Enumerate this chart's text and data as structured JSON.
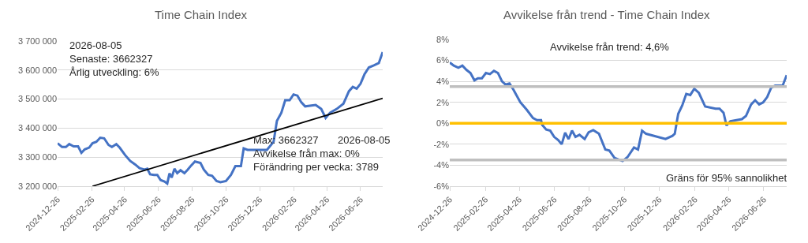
{
  "chart_data": [
    {
      "type": "line",
      "title": "Time Chain Index",
      "series": [
        {
          "color": "#4472c4",
          "x": [
            "2024-12-26",
            "2025-01-03",
            "2025-01-10",
            "2025-01-16",
            "2025-01-24",
            "2025-02-01",
            "2025-02-07",
            "2025-02-13",
            "2025-02-21",
            "2025-02-27",
            "2025-03-06",
            "2025-03-13",
            "2025-03-20",
            "2025-03-28",
            "2025-04-03",
            "2025-04-11",
            "2025-04-17",
            "2025-04-27",
            "2025-05-06",
            "2025-05-15",
            "2025-05-23",
            "2025-06-01",
            "2025-06-06",
            "2025-06-11",
            "2025-06-18",
            "2025-06-24",
            "2025-06-30",
            "2025-07-07",
            "2025-07-12",
            "2025-07-16",
            "2025-07-20",
            "2025-07-25",
            "2025-07-30",
            "2025-08-05",
            "2025-08-12",
            "2025-08-18",
            "2025-08-24",
            "2025-08-31",
            "2025-09-10",
            "2025-09-16",
            "2025-09-24",
            "2025-10-01",
            "2025-10-09",
            "2025-10-16",
            "2025-10-26",
            "2025-11-04",
            "2025-11-12",
            "2025-11-22",
            "2025-11-27",
            "2025-12-04",
            "2026-01-08",
            "2026-01-20",
            "2026-01-26",
            "2026-02-03",
            "2026-02-10",
            "2026-02-18",
            "2026-02-25",
            "2026-03-04",
            "2026-03-11",
            "2026-03-18",
            "2026-04-06",
            "2026-04-16",
            "2026-04-24",
            "2026-05-02",
            "2026-05-14",
            "2026-05-26",
            "2026-06-05",
            "2026-06-12",
            "2026-06-19",
            "2026-06-26",
            "2026-07-03",
            "2026-07-11",
            "2026-07-20",
            "2026-07-29",
            "2026-08-05"
          ],
          "values": [
            3348000,
            3335000,
            3335000,
            3345000,
            3337000,
            3337000,
            3315000,
            3327000,
            3333000,
            3348000,
            3353000,
            3367000,
            3365000,
            3342000,
            3335000,
            3345000,
            3333000,
            3307000,
            3287000,
            3275000,
            3262000,
            3257000,
            3260000,
            3241000,
            3239000,
            3239000,
            3221000,
            3216000,
            3209000,
            3244000,
            3230000,
            3260000,
            3245000,
            3255000,
            3245000,
            3257000,
            3271000,
            3285000,
            3280000,
            3257000,
            3239000,
            3236000,
            3218000,
            3214000,
            3218000,
            3239000,
            3269000,
            3269000,
            3330000,
            3325000,
            3325000,
            3353000,
            3425000,
            3453000,
            3496000,
            3496000,
            3516000,
            3512000,
            3489000,
            3475000,
            3480000,
            3466000,
            3435000,
            3453000,
            3466000,
            3484000,
            3527000,
            3542000,
            3536000,
            3553000,
            3585000,
            3609000,
            3616000,
            3624000,
            3662000
          ]
        },
        {
          "type": "line",
          "color": "#000000",
          "x": [
            "2025-02-27",
            "2026-08-05"
          ],
          "values": [
            3200000,
            3503000
          ]
        }
      ],
      "xlim": [
        "2024-12-26",
        "2026-08-05"
      ],
      "xticks": [
        "2024-12-26",
        "2025-02-26",
        "2025-04-26",
        "2025-06-26",
        "2025-08-26",
        "2025-10-26",
        "2025-12-26",
        "2026-02-26",
        "2026-04-26",
        "2026-06-26"
      ],
      "ylim": [
        3200000,
        3700000
      ],
      "yticks": [
        {
          "value": 3200000,
          "label": "3 200 000"
        },
        {
          "value": 3300000,
          "label": "3 300 000"
        },
        {
          "value": 3400000,
          "label": "3 400 000"
        },
        {
          "value": 3500000,
          "label": "3 500 000"
        },
        {
          "value": 3600000,
          "label": "3 600 000"
        },
        {
          "value": 3700000,
          "label": "3 700 000"
        }
      ],
      "grid": "y",
      "annotations": [
        "2026-08-05\nSenaste: 3662327\nÅrlig utveckling: 6%",
        "Max: 3662327\nAvvikelse från max: 0%\nFörändring per vecka: 3789",
        "2026-08-05"
      ]
    },
    {
      "type": "line",
      "title": "Avvikelse från trend - Time Chain Index",
      "series": [
        {
          "color": "#4472c4",
          "x": [
            "2024-12-26",
            "2025-01-02",
            "2025-01-10",
            "2025-01-17",
            "2025-01-24",
            "2025-01-31",
            "2025-02-07",
            "2025-02-13",
            "2025-02-20",
            "2025-02-27",
            "2025-03-06",
            "2025-03-13",
            "2025-03-20",
            "2025-03-27",
            "2025-04-02",
            "2025-04-09",
            "2025-04-16",
            "2025-04-28",
            "2025-05-09",
            "2025-05-20",
            "2025-05-27",
            "2025-06-03",
            "2025-06-05",
            "2025-06-12",
            "2025-06-19",
            "2025-06-26",
            "2025-07-03",
            "2025-07-09",
            "2025-07-15",
            "2025-07-21",
            "2025-07-27",
            "2025-08-02",
            "2025-08-09",
            "2025-08-18",
            "2025-08-25",
            "2025-09-02",
            "2025-09-12",
            "2025-09-23",
            "2025-09-30",
            "2025-10-09",
            "2025-10-23",
            "2025-11-01",
            "2025-11-12",
            "2025-11-19",
            "2025-11-26",
            "2025-12-03",
            "2026-01-06",
            "2026-01-18",
            "2026-01-22",
            "2026-01-28",
            "2026-02-04",
            "2026-02-11",
            "2026-02-18",
            "2026-02-25",
            "2026-03-05",
            "2026-03-16",
            "2026-04-03",
            "2026-04-10",
            "2026-04-17",
            "2026-04-22",
            "2026-04-29",
            "2026-05-19",
            "2026-05-26",
            "2026-06-04",
            "2026-06-11",
            "2026-06-18",
            "2026-06-25",
            "2026-07-02",
            "2026-07-09",
            "2026-07-16",
            "2026-07-29",
            "2026-08-05"
          ],
          "values": [
            5.8,
            5.5,
            5.3,
            5.5,
            5.1,
            4.8,
            4.1,
            4.3,
            4.3,
            4.8,
            4.7,
            5.0,
            4.8,
            4.0,
            3.7,
            3.8,
            3.2,
            2.0,
            1.3,
            0.5,
            0.3,
            0.3,
            -0.15,
            -0.6,
            -0.7,
            -1.3,
            -1.6,
            -2.0,
            -0.9,
            -1.5,
            -0.7,
            -1.3,
            -1.1,
            -1.5,
            -0.85,
            -0.65,
            -1.0,
            -2.5,
            -2.6,
            -3.3,
            -3.6,
            -3.2,
            -2.3,
            -2.5,
            -0.7,
            -1.0,
            -1.5,
            -1.2,
            -1.0,
            0.9,
            1.7,
            2.8,
            2.7,
            3.3,
            2.9,
            1.6,
            1.4,
            1.4,
            1.0,
            -0.2,
            0.2,
            0.4,
            0.7,
            1.8,
            2.2,
            1.8,
            2.0,
            2.5,
            3.4,
            3.6,
            3.6,
            4.6
          ]
        }
      ],
      "xlim": [
        "2024-12-26",
        "2026-08-05"
      ],
      "xticks": [
        "2024-12-26",
        "2025-02-26",
        "2025-04-26",
        "2025-06-26",
        "2025-08-26",
        "2025-10-26",
        "2025-12-26",
        "2026-02-26",
        "2026-04-26",
        "2026-06-26"
      ],
      "ylim": [
        -6,
        8
      ],
      "yticks": [
        {
          "value": -6,
          "label": "-6%"
        },
        {
          "value": -4,
          "label": "-4%"
        },
        {
          "value": -2,
          "label": "-2%"
        },
        {
          "value": 0,
          "label": "0%"
        },
        {
          "value": 2,
          "label": "2%"
        },
        {
          "value": 4,
          "label": "4%"
        },
        {
          "value": 6,
          "label": "6%"
        },
        {
          "value": 8,
          "label": "8%"
        }
      ],
      "ref_lines": [
        {
          "axis": "y",
          "value": 0,
          "color": "#ffc000"
        },
        {
          "axis": "y",
          "value": 3.5,
          "color": "#bfbfbf"
        },
        {
          "axis": "y",
          "value": -3.5,
          "color": "#bfbfbf"
        }
      ],
      "grid": "y",
      "annotations": [
        "Avvikelse från trend: 4,6%",
        "Gräns för 95% sannolikhet"
      ]
    }
  ]
}
